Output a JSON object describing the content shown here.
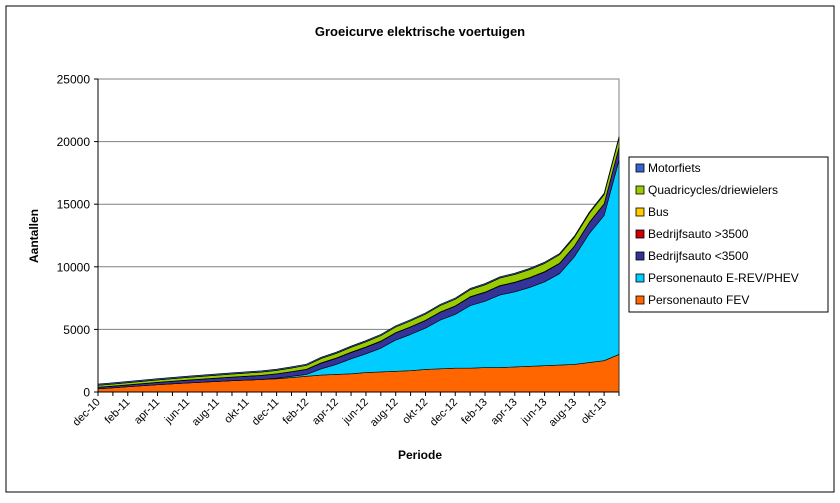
{
  "chart_data": {
    "type": "area",
    "stacked": true,
    "title": "Groeicurve elektrische voertuigen",
    "xlabel": "Periode",
    "ylabel": "Aantallen",
    "ylim": [
      0,
      25000
    ],
    "yticks": [
      0,
      5000,
      10000,
      15000,
      20000,
      25000
    ],
    "ytick_labels": [
      "0",
      "5000",
      "10000",
      "15000",
      "20000",
      "25000"
    ],
    "grid": true,
    "legend_position": "right",
    "x": [
      "dec-10",
      "jan-11",
      "feb-11",
      "mrt-11",
      "apr-11",
      "mei-11",
      "jun-11",
      "jul-11",
      "aug-11",
      "sep-11",
      "okt-11",
      "nov-11",
      "dec-11",
      "jan-12",
      "feb-12",
      "mrt-12",
      "apr-12",
      "mei-12",
      "jun-12",
      "jul-12",
      "aug-12",
      "sep-12",
      "okt-12",
      "nov-12",
      "dec-12",
      "jan-13",
      "feb-13",
      "mrt-13",
      "apr-13",
      "mei-13",
      "jun-13",
      "jul-13",
      "aug-13",
      "sep-13",
      "okt-13",
      "nov-13"
    ],
    "x_tick_labels": [
      "dec-10",
      "feb-11",
      "apr-11",
      "jun-11",
      "aug-11",
      "okt-11",
      "dec-11",
      "feb-12",
      "apr-12",
      "jun-12",
      "aug-12",
      "okt-12",
      "dec-12",
      "feb-13",
      "apr-13",
      "jun-13",
      "aug-13",
      "okt-13"
    ],
    "series": [
      {
        "name": "Personenauto FEV",
        "color": "#FF6600",
        "values": [
          250,
          330,
          420,
          500,
          580,
          650,
          720,
          780,
          840,
          900,
          950,
          1000,
          1050,
          1150,
          1250,
          1350,
          1400,
          1450,
          1550,
          1600,
          1650,
          1700,
          1800,
          1850,
          1900,
          1900,
          1950,
          1950,
          2000,
          2050,
          2100,
          2150,
          2200,
          2350,
          2500,
          3000
        ]
      },
      {
        "name": "Personenauto E-REV/PHEV",
        "color": "#00CCFF",
        "values": [
          0,
          0,
          0,
          0,
          0,
          0,
          0,
          0,
          0,
          0,
          0,
          0,
          50,
          100,
          150,
          500,
          800,
          1200,
          1500,
          1900,
          2500,
          2900,
          3300,
          3900,
          4300,
          5000,
          5300,
          5800,
          6000,
          6300,
          6700,
          7300,
          8600,
          10300,
          11600,
          15500
        ]
      },
      {
        "name": "Bedrijfsauto <3500",
        "color": "#333399",
        "values": [
          120,
          130,
          140,
          160,
          180,
          200,
          220,
          240,
          260,
          280,
          300,
          320,
          340,
          360,
          400,
          450,
          480,
          500,
          520,
          540,
          560,
          580,
          600,
          620,
          650,
          680,
          700,
          720,
          740,
          760,
          780,
          800,
          820,
          860,
          900,
          1000
        ]
      },
      {
        "name": "Bedrijfsauto >3500",
        "color": "#CC0000",
        "values": [
          5,
          5,
          5,
          5,
          5,
          5,
          5,
          5,
          5,
          5,
          5,
          5,
          5,
          5,
          5,
          10,
          10,
          10,
          10,
          10,
          10,
          10,
          10,
          10,
          10,
          10,
          10,
          10,
          10,
          10,
          10,
          10,
          10,
          10,
          10,
          10
        ]
      },
      {
        "name": "Bus",
        "color": "#FFCC00",
        "values": [
          10,
          10,
          10,
          10,
          10,
          10,
          10,
          10,
          10,
          10,
          10,
          10,
          10,
          10,
          10,
          20,
          20,
          20,
          20,
          20,
          20,
          20,
          20,
          20,
          20,
          20,
          20,
          20,
          20,
          20,
          20,
          20,
          20,
          20,
          20,
          20
        ]
      },
      {
        "name": "Quadricycles/driewielers",
        "color": "#99CC00",
        "values": [
          150,
          160,
          170,
          180,
          190,
          200,
          210,
          220,
          230,
          240,
          250,
          260,
          270,
          290,
          310,
          350,
          370,
          390,
          410,
          430,
          450,
          470,
          490,
          510,
          530,
          560,
          580,
          600,
          620,
          640,
          660,
          680,
          700,
          720,
          740,
          760
        ]
      },
      {
        "name": "Motorfiets",
        "color": "#3366CC",
        "values": [
          100,
          100,
          100,
          100,
          100,
          100,
          100,
          100,
          100,
          100,
          100,
          100,
          100,
          100,
          100,
          100,
          100,
          100,
          100,
          100,
          100,
          100,
          100,
          100,
          100,
          100,
          100,
          100,
          100,
          100,
          100,
          100,
          100,
          100,
          100,
          100
        ]
      }
    ]
  }
}
